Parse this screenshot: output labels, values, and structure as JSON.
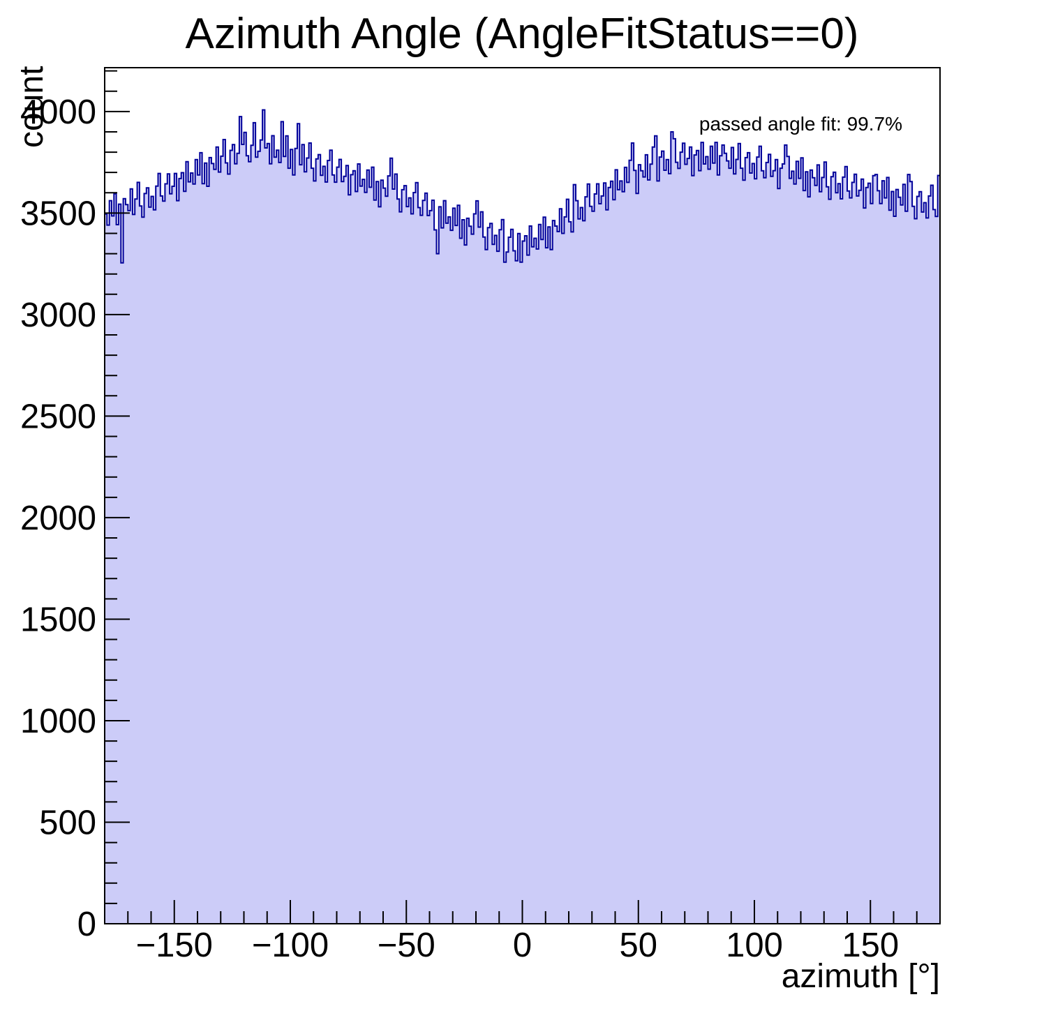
{
  "canvas": {
    "background": "#ffffff"
  },
  "chart_data": {
    "type": "histogram",
    "title": "Azimuth Angle (AngleFitStatus==0)",
    "xlabel": "azimuth [°]",
    "ylabel": "count",
    "annotation": "passed angle fit: 99.7%",
    "x_range": [
      -180,
      180
    ],
    "y_range": [
      0,
      4216
    ],
    "n_bins": 360,
    "bin_width_deg": 1,
    "grid": false,
    "legend": false,
    "colors": {
      "fill": "#ccccf8",
      "line": "#000099",
      "axis": "#000000",
      "text": "#000000"
    },
    "x_ticks": {
      "major_step": 50,
      "minor_step": 10,
      "values": [
        -150,
        -100,
        -50,
        0,
        50,
        100,
        150
      ],
      "labels": [
        "−150",
        "−100",
        "−50",
        "0",
        "50",
        "100",
        "150"
      ]
    },
    "y_ticks": {
      "major_step": 500,
      "minor_step": 100,
      "values": [
        0,
        500,
        1000,
        1500,
        2000,
        2500,
        3000,
        3500,
        4000
      ],
      "labels": [
        "0",
        "500",
        "1000",
        "1500",
        "2000",
        "2500",
        "3000",
        "3500",
        "4000"
      ]
    },
    "envelope_deg_count": [
      [
        -180,
        3480
      ],
      [
        -170,
        3540
      ],
      [
        -160,
        3570
      ],
      [
        -150,
        3640
      ],
      [
        -140,
        3700
      ],
      [
        -130,
        3760
      ],
      [
        -120,
        3795
      ],
      [
        -115,
        3810
      ],
      [
        -110,
        3805
      ],
      [
        -100,
        3790
      ],
      [
        -90,
        3740
      ],
      [
        -80,
        3700
      ],
      [
        -70,
        3660
      ],
      [
        -60,
        3620
      ],
      [
        -50,
        3575
      ],
      [
        -40,
        3520
      ],
      [
        -30,
        3460
      ],
      [
        -20,
        3420
      ],
      [
        -10,
        3375
      ],
      [
        -5,
        3350
      ],
      [
        0,
        3345
      ],
      [
        5,
        3360
      ],
      [
        10,
        3395
      ],
      [
        20,
        3475
      ],
      [
        30,
        3555
      ],
      [
        40,
        3630
      ],
      [
        50,
        3695
      ],
      [
        60,
        3745
      ],
      [
        65,
        3765
      ],
      [
        70,
        3775
      ],
      [
        80,
        3765
      ],
      [
        90,
        3750
      ],
      [
        100,
        3735
      ],
      [
        110,
        3710
      ],
      [
        120,
        3685
      ],
      [
        130,
        3655
      ],
      [
        140,
        3628
      ],
      [
        150,
        3608
      ],
      [
        160,
        3580
      ],
      [
        170,
        3550
      ],
      [
        180,
        3530
      ]
    ],
    "noise_cycle": [
      12,
      -48,
      66,
      -15,
      88,
      -70,
      25,
      -95,
      40,
      5,
      -30,
      74,
      -55,
      18,
      97,
      -22,
      -80,
      33,
      58,
      -40,
      8,
      -65,
      45,
      100,
      -18,
      -50,
      28,
      70,
      -35,
      -5,
      52,
      -88,
      15,
      38,
      -60,
      80,
      -25
    ],
    "notable_bins": [
      [
        -173,
        3255
      ],
      [
        -122,
        3975
      ],
      [
        -116,
        3945
      ],
      [
        -112,
        4008
      ],
      [
        -104,
        3950
      ],
      [
        -97,
        3940
      ],
      [
        -57,
        3770
      ],
      [
        -37,
        3300
      ],
      [
        -20,
        3560
      ],
      [
        -8,
        3258
      ],
      [
        -3,
        3265
      ],
      [
        22,
        3640
      ],
      [
        47,
        3845
      ],
      [
        57,
        3880
      ],
      [
        64,
        3900
      ],
      [
        86,
        3835
      ],
      [
        113,
        3835
      ],
      [
        152,
        3690
      ],
      [
        166,
        3690
      ],
      [
        179,
        3685
      ]
    ]
  }
}
